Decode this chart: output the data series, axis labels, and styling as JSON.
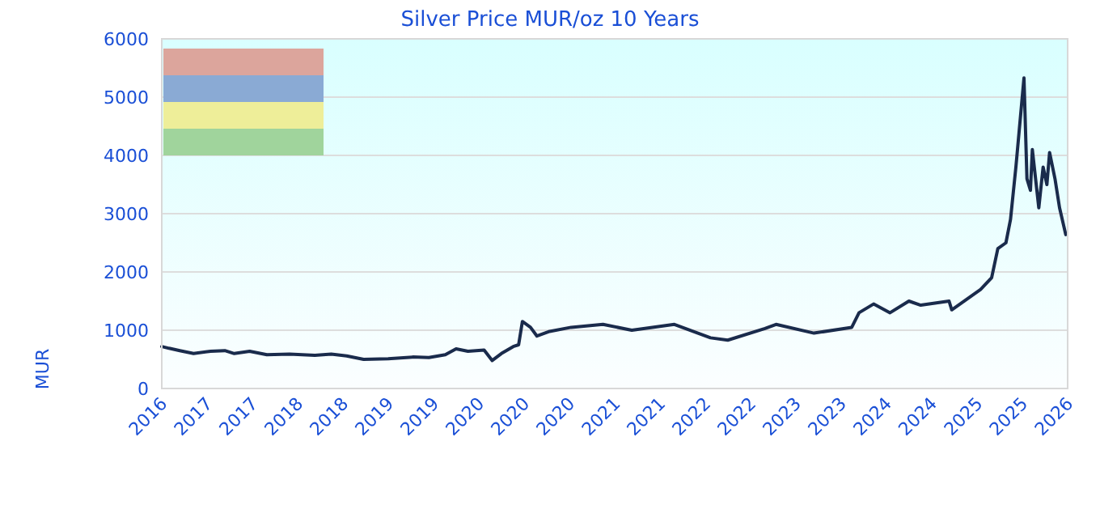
{
  "chart_data": {
    "type": "line",
    "title": "Silver Price MUR/oz 10 Years",
    "ylabel": "MUR",
    "xlim": [
      "2016-10-19",
      "2026-01-01"
    ],
    "xticks": [
      {
        "value": "2016-10-19",
        "label": "2016"
      },
      {
        "value": "2017-04-05",
        "label": "2017"
      },
      {
        "value": "2017-09-20",
        "label": "2017"
      },
      {
        "value": "2018-03-07",
        "label": "2018"
      },
      {
        "value": "2018-08-22",
        "label": "2018"
      },
      {
        "value": "2019-02-06",
        "label": "2019"
      },
      {
        "value": "2019-07-24",
        "label": "2019"
      },
      {
        "value": "2020-01-08",
        "label": "2020"
      },
      {
        "value": "2020-06-24",
        "label": "2020"
      },
      {
        "value": "2020-12-09",
        "label": "2020"
      },
      {
        "value": "2021-05-27",
        "label": "2021"
      },
      {
        "value": "2021-11-10",
        "label": "2021"
      },
      {
        "value": "2022-04-27",
        "label": "2022"
      },
      {
        "value": "2022-10-12",
        "label": "2022"
      },
      {
        "value": "2023-03-29",
        "label": "2023"
      },
      {
        "value": "2023-09-13",
        "label": "2023"
      },
      {
        "value": "2024-02-28",
        "label": "2024"
      },
      {
        "value": "2024-08-14",
        "label": "2024"
      },
      {
        "value": "2025-01-30",
        "label": "2025"
      },
      {
        "value": "2025-07-17",
        "label": "2025"
      },
      {
        "value": "2026-01-01",
        "label": "2026"
      }
    ],
    "ylim": [
      0,
      6000
    ],
    "yticks": [
      0,
      1000,
      2000,
      3000,
      4000,
      5000,
      6000
    ],
    "grid": "y",
    "marker": "none",
    "line_style": "solid",
    "x": [
      "2016-10-19",
      "2016-11-15",
      "2016-12-25",
      "2017-02-14",
      "2017-04-18",
      "2017-06-10",
      "2017-07-15",
      "2017-09-10",
      "2017-11-13",
      "2018-02-05",
      "2018-05-10",
      "2018-07-10",
      "2018-09-05",
      "2018-11-07",
      "2019-02-06",
      "2019-05-08",
      "2019-07-07",
      "2019-09-06",
      "2019-10-16",
      "2019-11-29",
      "2020-01-28",
      "2020-02-27",
      "2020-04-01",
      "2020-05-15",
      "2020-06-04",
      "2020-06-18",
      "2020-07-18",
      "2020-08-11",
      "2020-09-27",
      "2020-12-16",
      "2021-04-13",
      "2021-07-29",
      "2022-01-03",
      "2022-05-17",
      "2022-07-20",
      "2022-12-05",
      "2023-01-15",
      "2023-06-05",
      "2023-10-23",
      "2023-11-19",
      "2024-01-12",
      "2024-03-13",
      "2024-05-22",
      "2024-07-05",
      "2024-10-18",
      "2024-10-28",
      "2025-02-12",
      "2025-03-25",
      "2025-04-17",
      "2025-05-17",
      "2025-06-03",
      "2025-06-23",
      "2025-07-23",
      "2025-08-03",
      "2025-08-16",
      "2025-08-23",
      "2025-09-16",
      "2025-10-02",
      "2025-10-16",
      "2025-10-26",
      "2025-11-15",
      "2025-12-02",
      "2025-12-25"
    ],
    "series": [
      {
        "color": "#1a2b4c",
        "values": [
          720,
          690,
          650,
          600,
          640,
          650,
          600,
          640,
          580,
          590,
          570,
          590,
          560,
          500,
          510,
          540,
          530,
          580,
          680,
          640,
          660,
          480,
          600,
          720,
          750,
          1150,
          1050,
          900,
          980,
          1050,
          1100,
          1000,
          1100,
          870,
          830,
          1030,
          1100,
          950,
          1050,
          1300,
          1450,
          1300,
          1500,
          1430,
          1500,
          1350,
          1700,
          1900,
          2400,
          2500,
          2900,
          3800,
          5330,
          3600,
          3400,
          4100,
          3100,
          3800,
          3500,
          4050,
          3600,
          3100,
          2640
        ]
      }
    ]
  }
}
